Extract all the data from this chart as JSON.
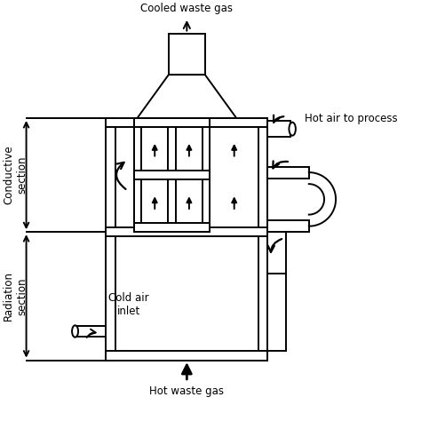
{
  "labels": {
    "cooled_waste_gas": "Cooled waste gas",
    "hot_waste_gas": "Hot waste gas",
    "hot_air_to_process": "Hot air to process",
    "cold_air_inlet": "Cold air\ninlet",
    "conductive_section": "Conductive\nsection",
    "radiation_section": "Radiation\nsection"
  },
  "colors": {
    "line": "#000000",
    "background": "#ffffff"
  },
  "lw": 1.4
}
